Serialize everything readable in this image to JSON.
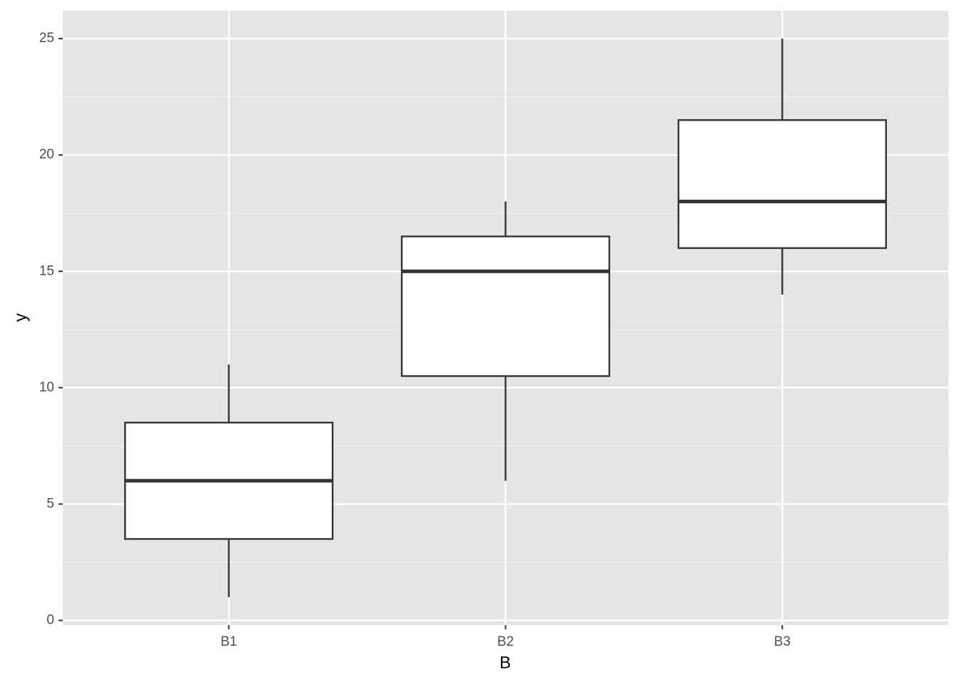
{
  "chart_data": {
    "type": "boxplot",
    "x_label": "B",
    "y_label": "y",
    "categories": [
      "B1",
      "B2",
      "B3"
    ],
    "min": [
      1,
      6,
      14
    ],
    "q1": [
      3.5,
      10.5,
      16
    ],
    "median": [
      6,
      15,
      18
    ],
    "q3": [
      8.5,
      16.5,
      21.5
    ],
    "max": [
      11,
      18,
      25
    ],
    "fill": "#ffffff",
    "stroke": "#333333",
    "ylim": [
      -0.2,
      26.2
    ],
    "yticks": [
      0,
      5,
      10,
      15,
      20,
      25
    ],
    "minor_yticks": [
      2.5,
      7.5,
      12.5,
      17.5,
      22.5
    ],
    "grid": true
  }
}
